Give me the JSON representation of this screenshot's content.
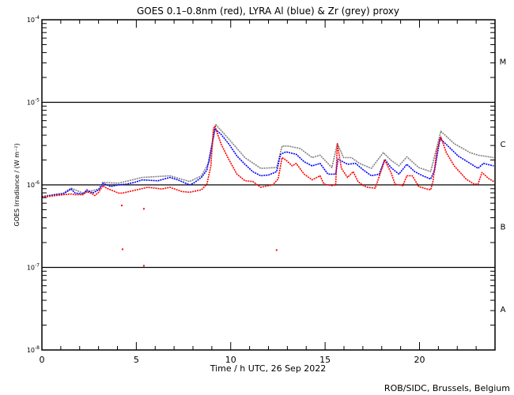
{
  "chart_data": {
    "type": "line",
    "title": "GOES 0.1–0.8nm (red), LYRA Al (blue) & Zr (grey) proxy",
    "xlabel": "Time / h UTC, 26 Sep 2022",
    "ylabel": "GOES Irradiance / (W m⁻²)",
    "xlim": [
      0,
      24
    ],
    "ylim": [
      1e-08,
      0.0001
    ],
    "yscale": "log",
    "value_format": "[hour, log10 irradiance W m^-2]",
    "x_ticks": [
      "0",
      "5",
      "10",
      "15",
      "20"
    ],
    "x_tick_values": [
      0,
      5,
      10,
      15,
      20
    ],
    "y_ticks": [
      {
        "base": "10",
        "exp": "-4",
        "value": -4
      },
      {
        "base": "10",
        "exp": "-5",
        "value": -5
      },
      {
        "base": "10",
        "exp": "-6",
        "value": -6
      },
      {
        "base": "10",
        "exp": "-7",
        "value": -7
      },
      {
        "base": "10",
        "exp": "-8",
        "value": -8
      }
    ],
    "class_thresholds": [
      -5,
      -6,
      -7
    ],
    "class_labels": [
      {
        "label": "M",
        "value": -4.5
      },
      {
        "label": "C",
        "value": -5.5
      },
      {
        "label": "B",
        "value": -6.5
      },
      {
        "label": "A",
        "value": -7.5
      }
    ],
    "series": [
      {
        "name": "LYRA Zr (grey) proxy",
        "color": "#808080",
        "points": [
          [
            0,
            -6.14
          ],
          [
            1.13,
            -6.1
          ],
          [
            1.55,
            -6.04
          ],
          [
            2.18,
            -6.1
          ],
          [
            3.01,
            -6.05
          ],
          [
            3.22,
            -5.97
          ],
          [
            4.06,
            -5.98
          ],
          [
            5.31,
            -5.91
          ],
          [
            6.78,
            -5.89
          ],
          [
            7.82,
            -5.96
          ],
          [
            8.45,
            -5.89
          ],
          [
            8.87,
            -5.72
          ],
          [
            9.21,
            -5.27
          ],
          [
            9.92,
            -5.45
          ],
          [
            10.75,
            -5.67
          ],
          [
            11.59,
            -5.8
          ],
          [
            12.43,
            -5.79
          ],
          [
            12.72,
            -5.53
          ],
          [
            13.05,
            -5.53
          ],
          [
            13.68,
            -5.56
          ],
          [
            14.31,
            -5.67
          ],
          [
            14.73,
            -5.64
          ],
          [
            15.36,
            -5.79
          ],
          [
            15.65,
            -5.5
          ],
          [
            15.98,
            -5.67
          ],
          [
            16.4,
            -5.67
          ],
          [
            16.82,
            -5.74
          ],
          [
            17.45,
            -5.8
          ],
          [
            18.08,
            -5.61
          ],
          [
            18.49,
            -5.7
          ],
          [
            18.91,
            -5.77
          ],
          [
            19.33,
            -5.66
          ],
          [
            19.96,
            -5.79
          ],
          [
            20.59,
            -5.84
          ],
          [
            21.13,
            -5.35
          ],
          [
            21.84,
            -5.5
          ],
          [
            22.68,
            -5.61
          ],
          [
            23.1,
            -5.64
          ],
          [
            23.93,
            -5.67
          ]
        ]
      },
      {
        "name": "LYRA Al (blue) proxy",
        "color": "#0000ff",
        "points": [
          [
            0,
            -6.15
          ],
          [
            0.71,
            -6.12
          ],
          [
            1.13,
            -6.11
          ],
          [
            1.55,
            -6.05
          ],
          [
            1.76,
            -6.1
          ],
          [
            2.18,
            -6.11
          ],
          [
            2.38,
            -6.06
          ],
          [
            2.68,
            -6.1
          ],
          [
            3.01,
            -6.06
          ],
          [
            3.22,
            -5.98
          ],
          [
            3.64,
            -6.02
          ],
          [
            4.06,
            -6.0
          ],
          [
            4.48,
            -5.99
          ],
          [
            4.9,
            -5.97
          ],
          [
            5.31,
            -5.94
          ],
          [
            6.15,
            -5.95
          ],
          [
            6.78,
            -5.91
          ],
          [
            7.2,
            -5.94
          ],
          [
            7.82,
            -6.0
          ],
          [
            8.03,
            -5.98
          ],
          [
            8.45,
            -5.91
          ],
          [
            8.74,
            -5.82
          ],
          [
            8.99,
            -5.53
          ],
          [
            9.16,
            -5.32
          ],
          [
            9.5,
            -5.39
          ],
          [
            9.92,
            -5.51
          ],
          [
            10.33,
            -5.65
          ],
          [
            10.75,
            -5.75
          ],
          [
            11.17,
            -5.84
          ],
          [
            11.59,
            -5.89
          ],
          [
            12.01,
            -5.88
          ],
          [
            12.43,
            -5.84
          ],
          [
            12.64,
            -5.63
          ],
          [
            12.93,
            -5.6
          ],
          [
            13.47,
            -5.63
          ],
          [
            13.89,
            -5.72
          ],
          [
            14.31,
            -5.77
          ],
          [
            14.73,
            -5.74
          ],
          [
            15.15,
            -5.87
          ],
          [
            15.56,
            -5.87
          ],
          [
            15.69,
            -5.69
          ],
          [
            16.19,
            -5.75
          ],
          [
            16.61,
            -5.74
          ],
          [
            17.03,
            -5.82
          ],
          [
            17.45,
            -5.89
          ],
          [
            17.87,
            -5.87
          ],
          [
            18.16,
            -5.69
          ],
          [
            18.49,
            -5.79
          ],
          [
            18.91,
            -5.87
          ],
          [
            19.33,
            -5.75
          ],
          [
            19.75,
            -5.84
          ],
          [
            20.17,
            -5.89
          ],
          [
            20.59,
            -5.93
          ],
          [
            20.8,
            -5.82
          ],
          [
            21.09,
            -5.44
          ],
          [
            21.42,
            -5.51
          ],
          [
            22.05,
            -5.65
          ],
          [
            22.68,
            -5.74
          ],
          [
            23.1,
            -5.8
          ],
          [
            23.39,
            -5.74
          ],
          [
            23.93,
            -5.77
          ]
        ]
      },
      {
        "name": "GOES 0.1-0.8nm (red)",
        "color": "#ff0000",
        "points": [
          [
            0,
            -6.15
          ],
          [
            0.71,
            -6.13
          ],
          [
            1.13,
            -6.12
          ],
          [
            1.55,
            -6.11
          ],
          [
            1.76,
            -6.12
          ],
          [
            2.18,
            -6.12
          ],
          [
            2.38,
            -6.08
          ],
          [
            2.68,
            -6.11
          ],
          [
            2.8,
            -6.13
          ],
          [
            3.01,
            -6.09
          ],
          [
            3.22,
            -6.01
          ],
          [
            3.43,
            -6.04
          ],
          [
            3.64,
            -6.06
          ],
          [
            4.06,
            -6.1
          ],
          [
            4.27,
            -6.1
          ],
          [
            5.61,
            -6.03
          ],
          [
            6.36,
            -6.05
          ],
          [
            6.78,
            -6.03
          ],
          [
            7.41,
            -6.08
          ],
          [
            7.82,
            -6.09
          ],
          [
            8.45,
            -6.06
          ],
          [
            8.74,
            -5.99
          ],
          [
            8.95,
            -5.77
          ],
          [
            9.08,
            -5.32
          ],
          [
            9.16,
            -5.29
          ],
          [
            9.5,
            -5.51
          ],
          [
            9.92,
            -5.7
          ],
          [
            10.33,
            -5.87
          ],
          [
            10.75,
            -5.95
          ],
          [
            11.17,
            -5.96
          ],
          [
            11.59,
            -6.03
          ],
          [
            12.01,
            -6.01
          ],
          [
            12.22,
            -6.0
          ],
          [
            12.51,
            -5.93
          ],
          [
            12.72,
            -5.67
          ],
          [
            12.93,
            -5.7
          ],
          [
            13.26,
            -5.77
          ],
          [
            13.47,
            -5.74
          ],
          [
            13.89,
            -5.87
          ],
          [
            14.31,
            -5.94
          ],
          [
            14.73,
            -5.89
          ],
          [
            14.94,
            -5.99
          ],
          [
            15.36,
            -6.01
          ],
          [
            15.56,
            -6.0
          ],
          [
            15.65,
            -5.5
          ],
          [
            15.86,
            -5.8
          ],
          [
            16.19,
            -5.91
          ],
          [
            16.49,
            -5.84
          ],
          [
            16.74,
            -5.96
          ],
          [
            17.03,
            -6.01
          ],
          [
            17.24,
            -6.03
          ],
          [
            17.66,
            -6.04
          ],
          [
            17.95,
            -5.84
          ],
          [
            18.16,
            -5.7
          ],
          [
            18.49,
            -5.85
          ],
          [
            18.7,
            -5.99
          ],
          [
            19.12,
            -6.01
          ],
          [
            19.33,
            -5.89
          ],
          [
            19.62,
            -5.89
          ],
          [
            19.96,
            -6.02
          ],
          [
            20.38,
            -6.05
          ],
          [
            20.59,
            -6.06
          ],
          [
            20.71,
            -5.96
          ],
          [
            20.92,
            -5.58
          ],
          [
            21.13,
            -5.42
          ],
          [
            21.42,
            -5.61
          ],
          [
            21.84,
            -5.77
          ],
          [
            22.47,
            -5.93
          ],
          [
            22.89,
            -5.99
          ],
          [
            23.1,
            -5.99
          ],
          [
            23.31,
            -5.85
          ],
          [
            23.64,
            -5.92
          ],
          [
            23.93,
            -5.96
          ]
        ],
        "outliers": [
          [
            4.23,
            -6.25
          ],
          [
            5.4,
            -6.29
          ],
          [
            4.27,
            -6.78
          ],
          [
            5.4,
            -6.98
          ],
          [
            12.43,
            -6.79
          ]
        ]
      }
    ]
  },
  "credit": "ROB/SIDC, Brussels, Belgium"
}
